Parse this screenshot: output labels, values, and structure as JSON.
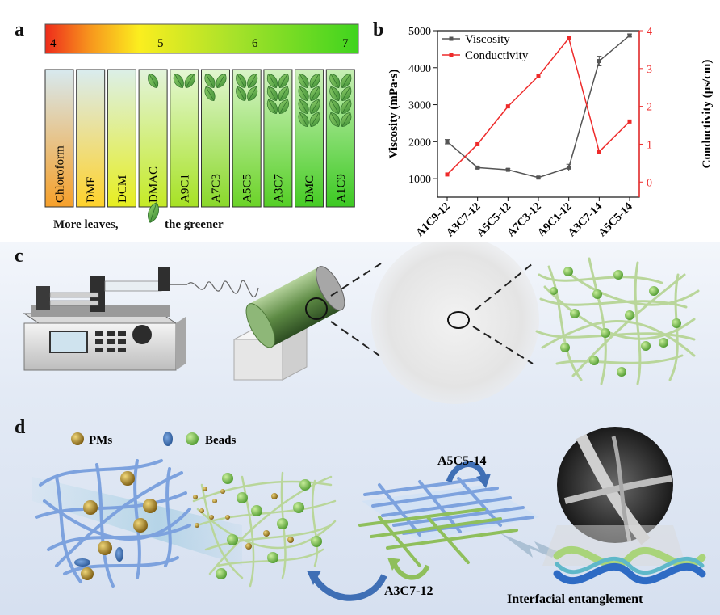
{
  "panel_a": {
    "letter": "a",
    "ph_scale": [
      "4",
      "5",
      "6",
      "7"
    ],
    "solvents": [
      "Chloroform",
      "DMF",
      "DCM",
      "DMAC",
      "A9C1",
      "A7C3",
      "A5C5",
      "A3C7",
      "DMC",
      "A1C9"
    ],
    "leaf_counts": [
      0,
      0,
      0,
      1,
      2,
      3,
      4,
      6,
      8,
      8
    ],
    "caption_left": "More leaves,",
    "caption_right": "the greener"
  },
  "panel_b": {
    "letter": "b"
  },
  "chart_data": {
    "type": "line",
    "categories": [
      "A1C9-12",
      "A3C7-12",
      "A5C5-12",
      "A7C3-12",
      "A9C1-12",
      "A3C7-14",
      "A5C5-14"
    ],
    "series": [
      {
        "name": "Viscosity",
        "axis": "left",
        "color": "#555555",
        "values": [
          2000,
          1300,
          1240,
          1030,
          1300,
          4180,
          4870
        ],
        "errors": [
          60,
          30,
          30,
          30,
          90,
          130,
          40
        ]
      },
      {
        "name": "Conductivity",
        "axis": "right",
        "color": "#ee2a2a",
        "values": [
          0.2,
          1.0,
          2.0,
          2.8,
          3.8,
          0.8,
          1.6
        ]
      }
    ],
    "ylabel": "Viscosity (mPa·s)",
    "ylabel2": "Conductivity (μs/cm)",
    "ylim": [
      500,
      5000
    ],
    "ylim2": [
      -0.4,
      4.0
    ],
    "yticks": [
      1000,
      2000,
      3000,
      4000,
      5000
    ],
    "yticks2": [
      0,
      1,
      2,
      3,
      4
    ],
    "legend": "top-left",
    "grid": false
  },
  "panel_c": {
    "letter": "c"
  },
  "panel_d": {
    "letter": "d",
    "legend_pms": "PMs",
    "legend_beads": "Beads",
    "label_a5c5": "A5C5-14",
    "label_a3c7": "A3C7-12",
    "label_interfacial": "Interfacial entanglement"
  },
  "colors": {
    "blue_fiber": "#7da2de",
    "green_fiber": "#a9cf86",
    "bead": "#6fb24c",
    "pm": "#b08a2a",
    "arrow_blue": "#3f6fb5"
  }
}
